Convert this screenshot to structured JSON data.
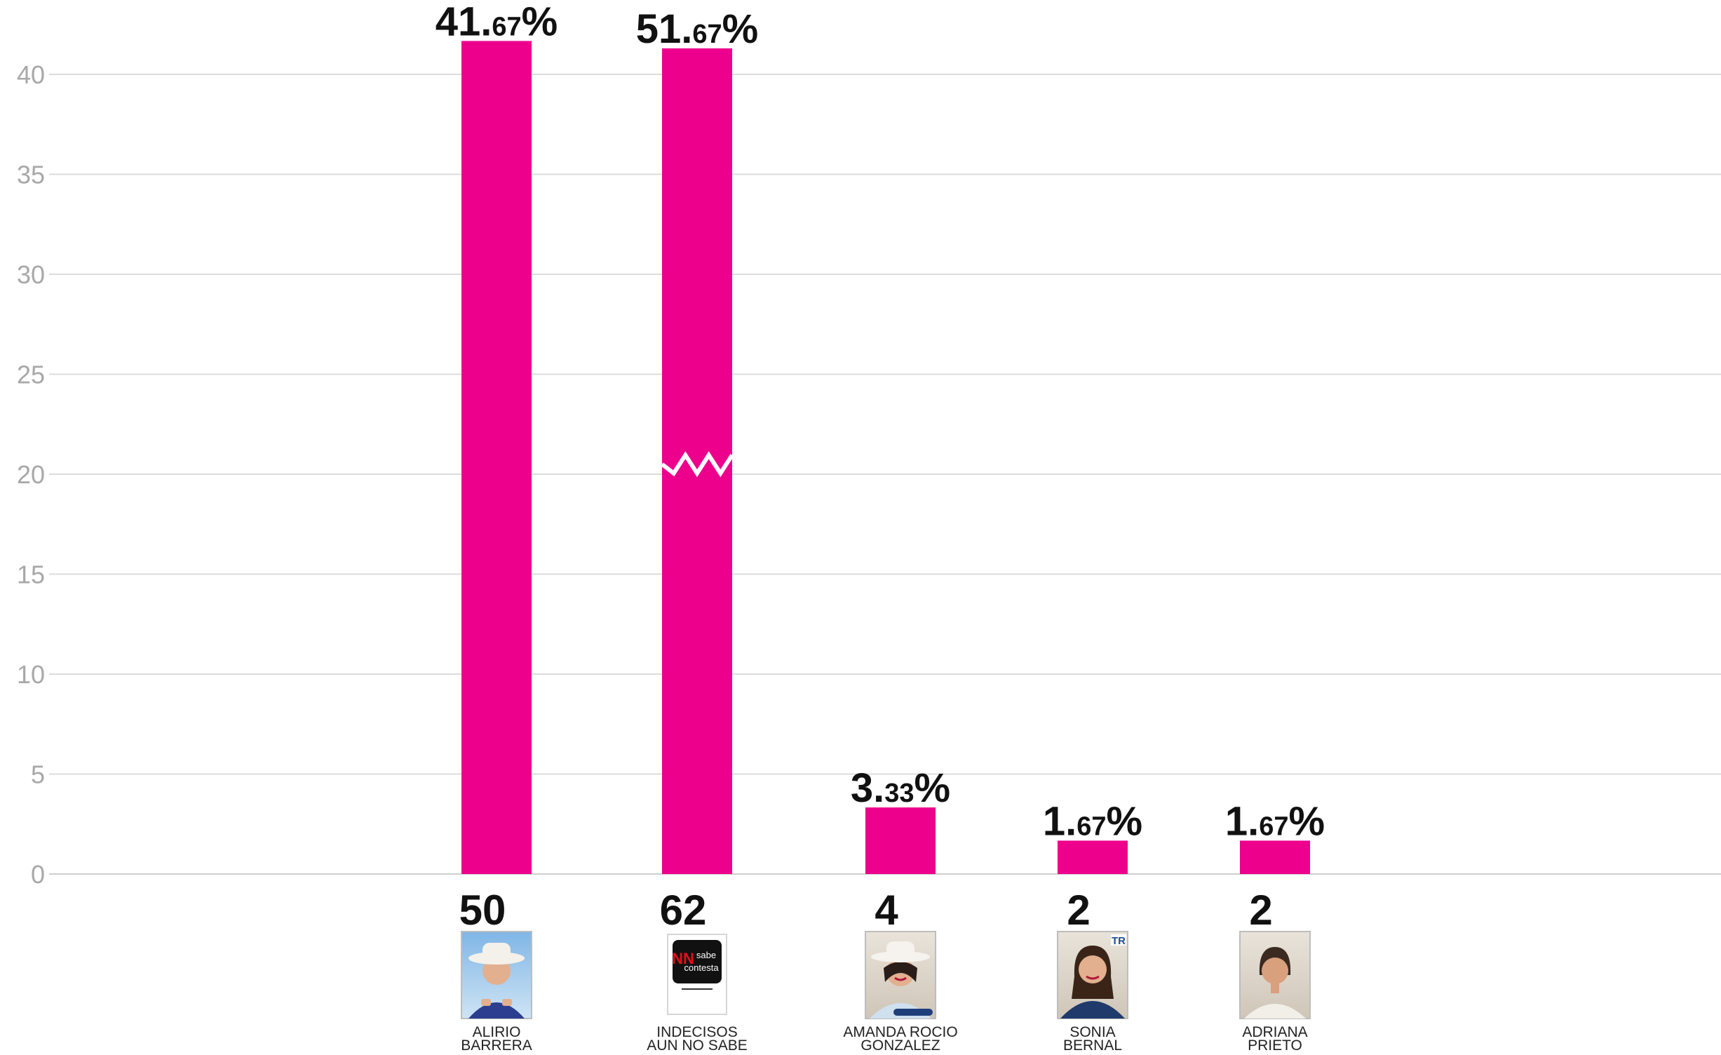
{
  "chart_data": {
    "type": "bar",
    "title": "",
    "xlabel": "",
    "ylabel": "",
    "ylim": [
      0,
      40
    ],
    "yticks": [
      0,
      5,
      10,
      15,
      20,
      25,
      30,
      35,
      40
    ],
    "grid": true,
    "bar_color": "#ec008c",
    "axis_break": {
      "category_index": 1,
      "at_value": 20.5
    },
    "categories": [
      {
        "label_lines": [
          "ALIRIO",
          "BARRERA"
        ],
        "value": 41.67,
        "pct_whole": "41.",
        "pct_decimals": "67",
        "pct_sign": "%",
        "count": "50",
        "photo": "man-in-white-cowboy-hat"
      },
      {
        "label_lines": [
          "INDECISOS",
          "AUN NO SABE"
        ],
        "value": 51.67,
        "display_value": 41.3,
        "pct_whole": "51.",
        "pct_decimals": "67",
        "pct_sign": "%",
        "count": "62",
        "photo": "ns-nc-logo",
        "logo_text": [
          "NN",
          "sabe",
          "contesta"
        ]
      },
      {
        "label_lines": [
          "AMANDA ROCIO",
          "GONZALEZ"
        ],
        "value": 3.33,
        "pct_whole": "3.",
        "pct_decimals": "33",
        "pct_sign": "%",
        "count": "4",
        "photo": "woman-in-white-hat"
      },
      {
        "label_lines": [
          "SONIA",
          "BERNAL"
        ],
        "value": 1.67,
        "pct_whole": "1.",
        "pct_decimals": "67",
        "pct_sign": "%",
        "count": "2",
        "photo": "woman-portrait-blue-jacket",
        "photo_badge": "TR"
      },
      {
        "label_lines": [
          "ADRIANA",
          "PRIETO"
        ],
        "value": 1.67,
        "pct_whole": "1.",
        "pct_decimals": "67",
        "pct_sign": "%",
        "count": "2",
        "photo": "woman-portrait-hair-tied"
      }
    ]
  }
}
